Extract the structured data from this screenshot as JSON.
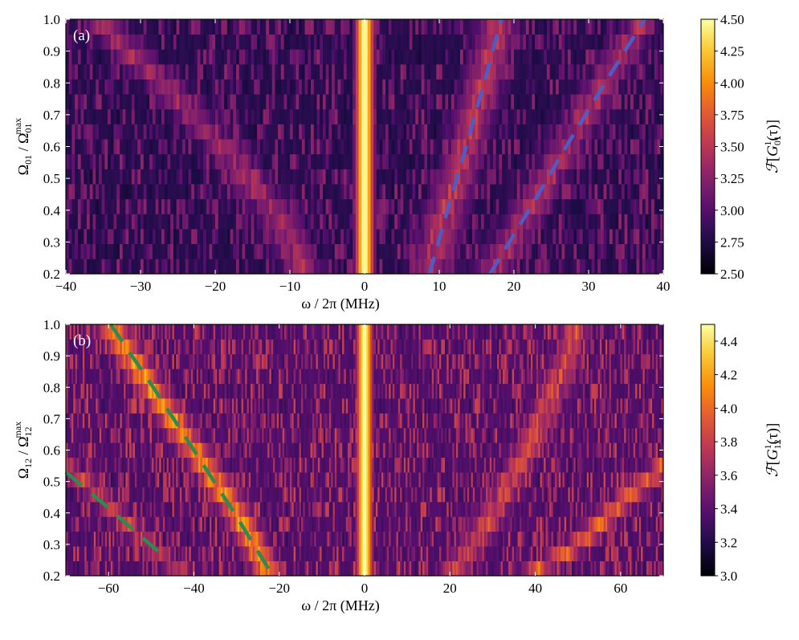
{
  "chart_data": [
    {
      "type": "heatmap",
      "panel_label": "(a)",
      "xlabel": "ω / 2π (MHz)",
      "ylabel": {
        "main": "Ω",
        "main_sub": "01",
        "sep": " / Ω",
        "den_sub": "01",
        "den_sup": "max"
      },
      "xlim": [
        -40,
        40
      ],
      "ylim": [
        0.2,
        1.0
      ],
      "xticks": [
        -40,
        -30,
        -20,
        -10,
        0,
        10,
        20,
        30,
        40
      ],
      "xtick_labels": [
        "−40",
        "−30",
        "−20",
        "−10",
        "0",
        "10",
        "20",
        "30",
        "40"
      ],
      "yticks": [
        0.2,
        0.3,
        0.4,
        0.5,
        0.6,
        0.7,
        0.8,
        0.9,
        1.0
      ],
      "ytick_labels": [
        "0.2",
        "0.3",
        "0.4",
        "0.5",
        "0.6",
        "0.7",
        "0.8",
        "0.9",
        "1.0"
      ],
      "colorbar": {
        "label": {
          "script": "ℱ",
          "open": "[",
          "g": "G",
          "sub": "01",
          "sup": "1",
          "tail": "(τ)]"
        },
        "range": [
          2.5,
          4.5
        ],
        "ticks": [
          2.5,
          2.75,
          3.0,
          3.25,
          3.5,
          3.75,
          4.0,
          4.25,
          4.5
        ],
        "tick_labels": [
          "2.50",
          "2.75",
          "3.00",
          "3.25",
          "3.50",
          "3.75",
          "4.00",
          "4.25",
          "4.50"
        ]
      },
      "cmap": "inferno",
      "n_rows": 17,
      "n_cols": 200,
      "background": 2.75,
      "noise": 0.55,
      "center_line": {
        "x": 0,
        "value": 4.5,
        "width": 0.9
      },
      "ridges": [
        {
          "points": [
            [
              -36,
              1.0
            ],
            [
              -27,
              0.8
            ],
            [
              -19,
              0.6
            ],
            [
              -12,
              0.4
            ],
            [
              -8,
              0.2
            ]
          ],
          "value": 3.35,
          "width": 1.8
        },
        {
          "points": [
            [
              8.5,
              0.2
            ],
            [
              11,
              0.4
            ],
            [
              13.5,
              0.6
            ],
            [
              16,
              0.8
            ],
            [
              18,
              1.0
            ]
          ],
          "value": 3.45,
          "width": 1.8
        },
        {
          "points": [
            [
              17,
              0.2
            ],
            [
              22,
              0.4
            ],
            [
              27,
              0.6
            ],
            [
              32,
              0.8
            ],
            [
              37.5,
              1.0
            ]
          ],
          "value": 3.35,
          "width": 1.8
        }
      ],
      "fit_lines": [
        {
          "color": "#4f5cc8",
          "dash": "22 14",
          "points": [
            [
              8.7,
              0.2
            ],
            [
              11.1,
              0.4
            ],
            [
              13.6,
              0.6
            ],
            [
              16.0,
              0.8
            ],
            [
              18.3,
              1.0
            ]
          ]
        },
        {
          "color": "#4f5cc8",
          "dash": "22 14",
          "points": [
            [
              16.8,
              0.2
            ],
            [
              22.0,
              0.4
            ],
            [
              27.0,
              0.6
            ],
            [
              32.2,
              0.8
            ],
            [
              37.5,
              1.0
            ]
          ]
        }
      ]
    },
    {
      "type": "heatmap",
      "panel_label": "(b)",
      "xlabel": "ω / 2π (MHz)",
      "ylabel": {
        "main": "Ω",
        "main_sub": "12",
        "sep": " / Ω",
        "den_sub": "12",
        "den_sup": "max"
      },
      "xlim": [
        -70,
        70
      ],
      "ylim": [
        0.2,
        1.0
      ],
      "xticks": [
        -60,
        -40,
        -20,
        0,
        20,
        40,
        60
      ],
      "xtick_labels": [
        "−60",
        "−40",
        "−20",
        "0",
        "20",
        "40",
        "60"
      ],
      "yticks": [
        0.2,
        0.3,
        0.4,
        0.5,
        0.6,
        0.7,
        0.8,
        0.9,
        1.0
      ],
      "ytick_labels": [
        "0.2",
        "0.3",
        "0.4",
        "0.5",
        "0.6",
        "0.7",
        "0.8",
        "0.9",
        "1.0"
      ],
      "colorbar": {
        "label": {
          "script": "ℱ",
          "open": "[",
          "g": "G",
          "sub": "12",
          "sup": "1",
          "tail": "(τ)]"
        },
        "range": [
          3.0,
          4.5
        ],
        "ticks": [
          3.0,
          3.2,
          3.4,
          3.6,
          3.8,
          4.0,
          4.2,
          4.4
        ],
        "tick_labels": [
          "3.0",
          "3.2",
          "3.4",
          "3.6",
          "3.8",
          "4.0",
          "4.2",
          "4.4"
        ]
      },
      "cmap": "inferno",
      "n_rows": 17,
      "n_cols": 320,
      "background": 3.3,
      "noise": 0.55,
      "center_line": {
        "x": 0,
        "value": 4.5,
        "width": 1.4
      },
      "ridges": [
        {
          "points": [
            [
              -60,
              1.0
            ],
            [
              -50,
              0.8
            ],
            [
              -40,
              0.6
            ],
            [
              -30,
              0.4
            ],
            [
              -22,
              0.2
            ]
          ],
          "value": 4.1,
          "width": 2.4
        },
        {
          "points": [
            [
              -68,
              0.53
            ],
            [
              -58,
              0.4
            ],
            [
              -48,
              0.27
            ],
            [
              -42,
              0.2
            ]
          ],
          "value": 3.75,
          "width": 2.2
        },
        {
          "points": [
            [
              20,
              0.2
            ],
            [
              28,
              0.35
            ],
            [
              36,
              0.55
            ],
            [
              45,
              0.8
            ],
            [
              50,
              1.0
            ]
          ],
          "value": 3.8,
          "width": 2.4
        },
        {
          "points": [
            [
              38,
              0.2
            ],
            [
              50,
              0.3
            ],
            [
              60,
              0.43
            ],
            [
              70,
              0.55
            ]
          ],
          "value": 3.95,
          "width": 2.4
        }
      ],
      "fit_lines": [
        {
          "color": "#2e8a4e",
          "dash": "26 16",
          "points": [
            [
              -59.5,
              1.0
            ],
            [
              -49.5,
              0.8
            ],
            [
              -40,
              0.6
            ],
            [
              -30.5,
              0.4
            ],
            [
              -21.5,
              0.2
            ]
          ]
        },
        {
          "color": "#2e8a4e",
          "dash": "26 16",
          "points": [
            [
              -70,
              0.53
            ],
            [
              -59.5,
              0.41
            ],
            [
              -52,
              0.32
            ],
            [
              -46,
              0.25
            ]
          ]
        }
      ]
    }
  ]
}
